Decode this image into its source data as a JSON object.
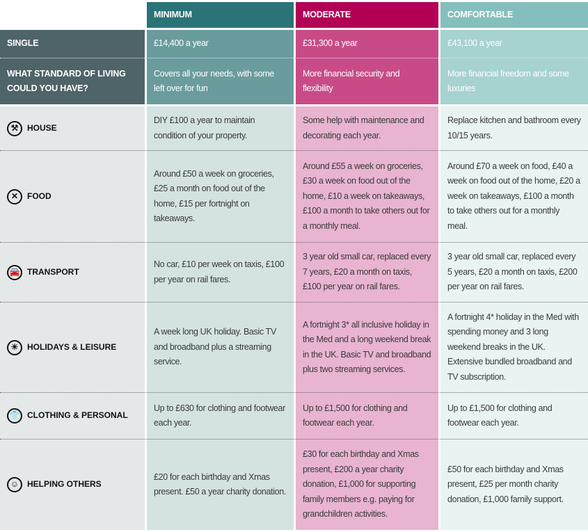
{
  "columns": [
    {
      "label": "MINIMUM",
      "color": "#2a7377"
    },
    {
      "label": "MODERATE",
      "color": "#b20057"
    },
    {
      "label": "COMFORTABLE",
      "color": "#85bfbd"
    }
  ],
  "summary_rows": [
    {
      "label": "SINGLE",
      "values": [
        "£14,400 a year",
        "£31,300 a year",
        "£43,100 a year"
      ]
    },
    {
      "label": "WHAT STANDARD OF LIVING COULD YOU HAVE?",
      "values": [
        "Covers all your needs, with some left over for fun",
        "More financial security and flexibility",
        "More financial freedom and some luxuries"
      ]
    }
  ],
  "categories": [
    {
      "label": "HOUSE",
      "icon": "tools-icon",
      "glyph": "⚒",
      "values": [
        "DIY £100 a year to maintain condition of your property.",
        "Some help with maintenance and decorating each year.",
        "Replace kitchen and bathroom every 10/15 years."
      ]
    },
    {
      "label": "FOOD",
      "icon": "cutlery-icon",
      "glyph": "✕",
      "values": [
        "Around £50 a week on groceries, £25 a month on food out of the home, £15 per fortnight on takeaways.",
        "Around £55 a week on groceries, £30 a week on food out of the home, £10 a week on takeaways, £100 a month to take others out for a monthly meal.",
        "Around £70 a week on food, £40 a week on food out of the home, £20 a week on takeaways, £100 a month to take others out for a monthly meal."
      ]
    },
    {
      "label": "TRANSPORT",
      "icon": "car-icon",
      "glyph": "🚘",
      "values": [
        "No car, £10 per week on taxis, £100 per year on rail fares.",
        "3 year old small car, replaced every 7 years, £20 a month on taxis, £100 per year on rail fares.",
        "3 year old small car, replaced every 5 years, £20 a month on taxis, £200 per year on rail fares."
      ]
    },
    {
      "label": "HOLIDAYS & LEISURE",
      "icon": "sun-lounger-icon",
      "glyph": "☀",
      "values": [
        "A week long UK holiday. Basic TV and broadband plus a streaming service.",
        "A fortnight 3* all inclusive holiday in the Med and a long weekend break in the UK. Basic TV and broadband plus two streaming services.",
        "A fortnight 4* holiday in the Med with spending money and 3 long weekend breaks in the UK. Extensive bundled broadband and TV subscription."
      ]
    },
    {
      "label": "CLOTHING & PERSONAL",
      "icon": "clothing-icon",
      "glyph": "👕",
      "values": [
        "Up to £630 for clothing and footwear each year.",
        "Up to £1,500 for clothing and footwear each year.",
        "Up to £1,500 for clothing and footwear each year."
      ]
    },
    {
      "label": "HELPING OTHERS",
      "icon": "helping-hand-icon",
      "glyph": "☺",
      "values": [
        "£20 for each birthday and Xmas present. £50 a year charity donation.",
        "£30 for each birthday and Xmas present, £200 a year charity donation, £1,000 for supporting family members e.g. paying for grandchildren activities.",
        "£50 for each birthday and Xmas present, £25 per month charity donation, £1,000 family support."
      ]
    }
  ]
}
